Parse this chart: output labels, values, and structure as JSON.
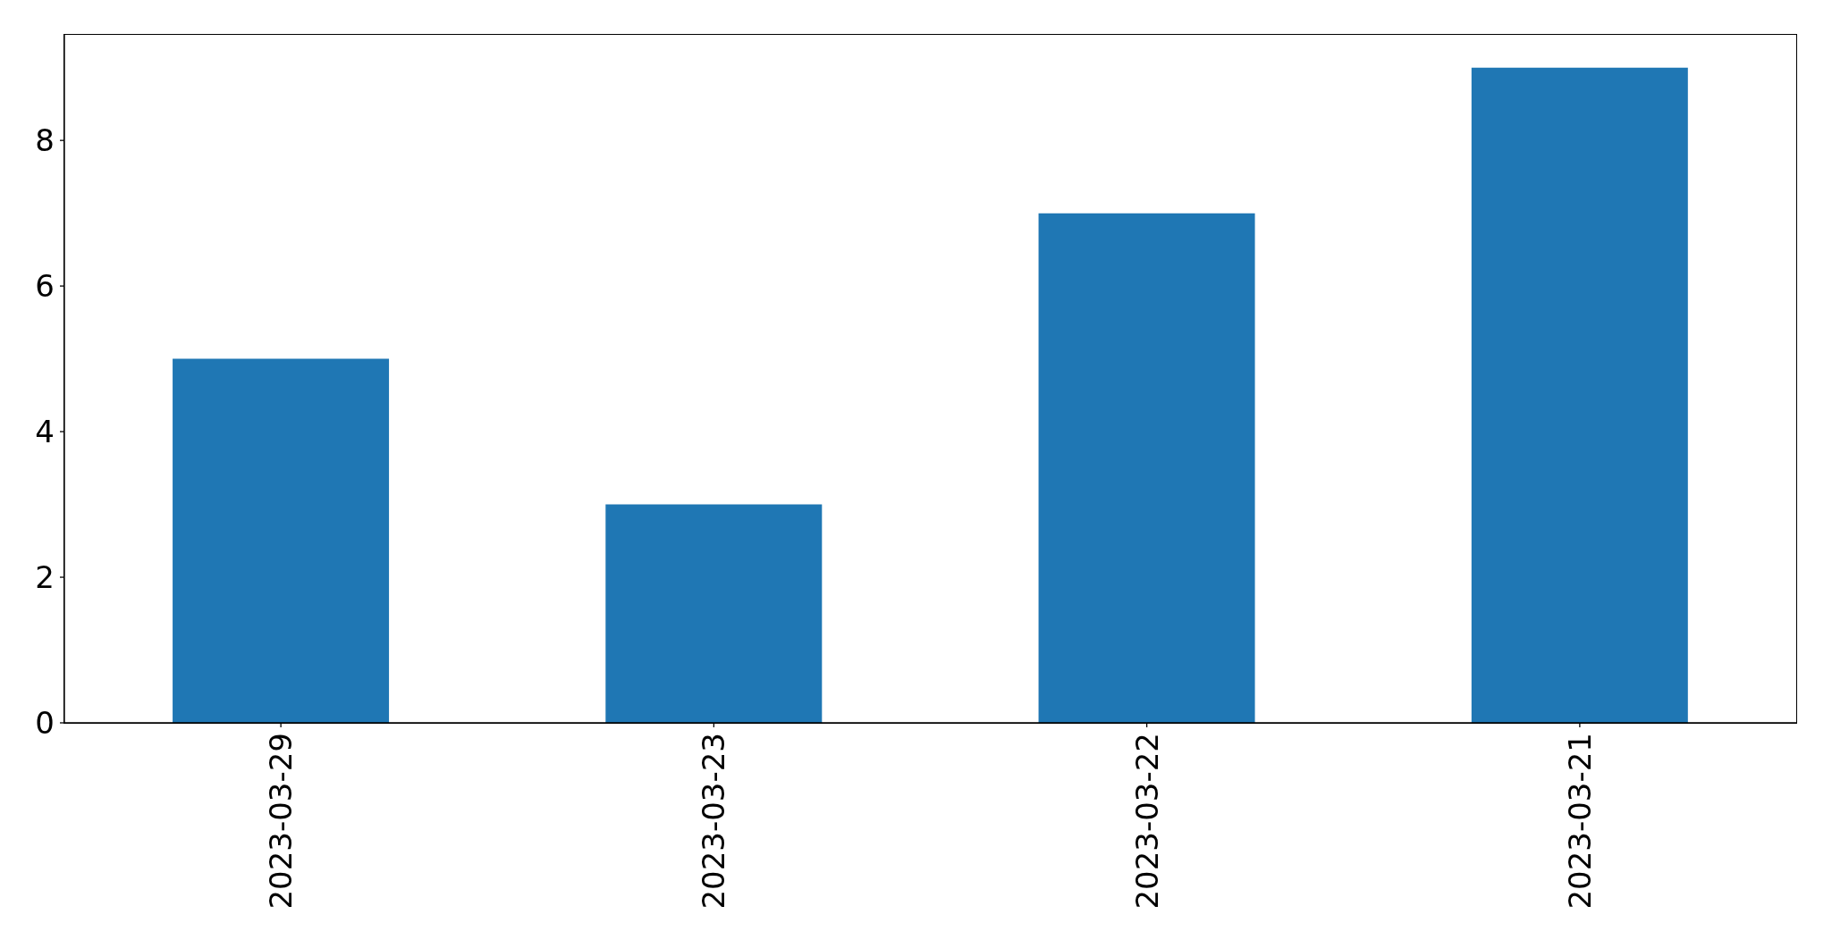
{
  "chart_data": {
    "type": "bar",
    "categories": [
      "2023-03-29",
      "2023-03-23",
      "2023-03-22",
      "2023-03-21"
    ],
    "values": [
      5,
      3,
      7,
      9
    ],
    "color": "#1f77b4",
    "ylim": [
      0,
      9.45
    ],
    "yticks": [
      0,
      2,
      4,
      6,
      8
    ]
  }
}
